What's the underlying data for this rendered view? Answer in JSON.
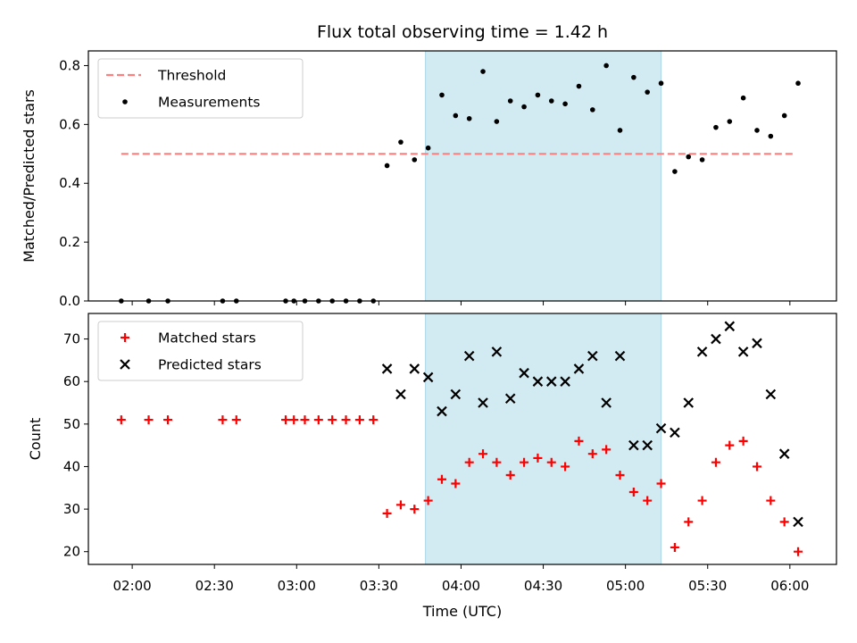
{
  "title": "Flux total observing time = 1.42 h",
  "xlabel": "Time (UTC)",
  "x_ticks": [
    "02:00",
    "02:30",
    "03:00",
    "03:30",
    "04:00",
    "04:30",
    "05:00",
    "05:30",
    "06:00"
  ],
  "shaded_region": {
    "x_start": "03:47",
    "x_end": "05:13",
    "color": "#add8e6"
  },
  "chart_data": [
    {
      "type": "scatter",
      "ylabel": "Matched/Predicted stars",
      "ylim": [
        0,
        0.85
      ],
      "y_ticks": [
        "0.0",
        "0.2",
        "0.4",
        "0.6",
        "0.8"
      ],
      "legend": {
        "position": "upper-left",
        "entries": [
          "Threshold",
          "Measurements"
        ]
      },
      "threshold": {
        "name": "Threshold",
        "value": 0.5,
        "x_start": "01:56",
        "x_end": "06:01",
        "color": "#ff7f7f",
        "style": "dashed"
      },
      "series": [
        {
          "name": "Measurements",
          "color": "#000000",
          "marker": "dot",
          "x": [
            "01:56",
            "02:06",
            "02:13",
            "02:33",
            "02:38",
            "02:56",
            "02:59",
            "03:03",
            "03:08",
            "03:13",
            "03:18",
            "03:23",
            "03:28",
            "03:33",
            "03:38",
            "03:43",
            "03:48",
            "03:53",
            "03:58",
            "04:03",
            "04:08",
            "04:13",
            "04:18",
            "04:23",
            "04:28",
            "04:33",
            "04:38",
            "04:43",
            "04:48",
            "04:53",
            "04:58",
            "05:03",
            "05:08",
            "05:13",
            "05:18",
            "05:23",
            "05:28",
            "05:33",
            "05:38",
            "05:43",
            "05:48",
            "05:53",
            "05:58",
            "06:03"
          ],
          "y": [
            0,
            0,
            0,
            0,
            0,
            0,
            0,
            0,
            0,
            0,
            0,
            0,
            0,
            0.46,
            0.54,
            0.48,
            0.52,
            0.7,
            0.63,
            0.62,
            0.78,
            0.61,
            0.68,
            0.66,
            0.7,
            0.68,
            0.67,
            0.73,
            0.65,
            0.8,
            0.58,
            0.76,
            0.71,
            0.74,
            0.44,
            0.49,
            0.48,
            0.59,
            0.61,
            0.69,
            0.58,
            0.56,
            0.63,
            0.74
          ]
        }
      ]
    },
    {
      "type": "scatter",
      "ylabel": "Count",
      "ylim": [
        17,
        76
      ],
      "y_ticks": [
        "20",
        "30",
        "40",
        "50",
        "60",
        "70"
      ],
      "legend": {
        "position": "upper-left",
        "entries": [
          "Matched stars",
          "Predicted stars"
        ]
      },
      "series": [
        {
          "name": "Matched stars",
          "color": "#ff0000",
          "marker": "plus",
          "x": [
            "01:56",
            "02:06",
            "02:13",
            "02:33",
            "02:38",
            "02:56",
            "02:59",
            "03:03",
            "03:08",
            "03:13",
            "03:18",
            "03:23",
            "03:28",
            "03:33",
            "03:38",
            "03:43",
            "03:48",
            "03:53",
            "03:58",
            "04:03",
            "04:08",
            "04:13",
            "04:18",
            "04:23",
            "04:28",
            "04:33",
            "04:38",
            "04:43",
            "04:48",
            "04:53",
            "04:58",
            "05:03",
            "05:08",
            "05:13",
            "05:18",
            "05:23",
            "05:28",
            "05:33",
            "05:38",
            "05:43",
            "05:48",
            "05:53",
            "05:58",
            "06:03"
          ],
          "y": [
            51,
            51,
            51,
            51,
            51,
            51,
            51,
            51,
            51,
            51,
            51,
            51,
            51,
            29,
            31,
            30,
            32,
            37,
            36,
            41,
            43,
            41,
            38,
            41,
            42,
            41,
            40,
            46,
            43,
            44,
            38,
            34,
            32,
            36,
            21,
            27,
            32,
            41,
            45,
            46,
            40,
            32,
            27,
            20
          ]
        },
        {
          "name": "Predicted stars",
          "color": "#000000",
          "marker": "x",
          "x": [
            "03:33",
            "03:38",
            "03:43",
            "03:48",
            "03:53",
            "03:58",
            "04:03",
            "04:08",
            "04:13",
            "04:18",
            "04:23",
            "04:28",
            "04:33",
            "04:38",
            "04:43",
            "04:48",
            "04:53",
            "04:58",
            "05:03",
            "05:08",
            "05:13",
            "05:18",
            "05:23",
            "05:28",
            "05:33",
            "05:38",
            "05:43",
            "05:48",
            "05:53",
            "05:58",
            "06:03"
          ],
          "y": [
            63,
            57,
            63,
            61,
            53,
            57,
            66,
            55,
            67,
            56,
            62,
            60,
            60,
            60,
            63,
            66,
            55,
            66,
            45,
            45,
            49,
            48,
            55,
            67,
            70,
            73,
            67,
            69,
            57,
            43,
            27
          ]
        }
      ]
    }
  ]
}
